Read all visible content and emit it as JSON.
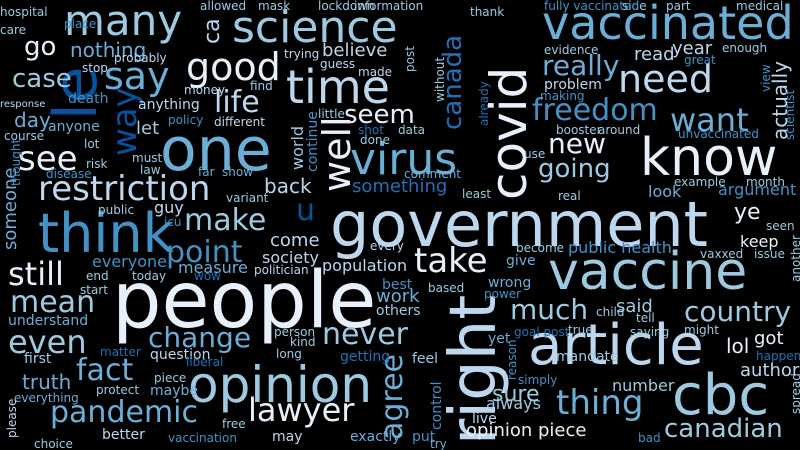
{
  "palette": [
    "#e8f1fb",
    "#bdd7ee",
    "#9ecae1",
    "#6baed6",
    "#4292c6",
    "#2171b5",
    "#08519c",
    "#1f4e8c"
  ],
  "words": [
    {
      "text": "people"
    },
    {
      "text": "government"
    },
    {
      "text": "vaccine"
    },
    {
      "text": "article"
    },
    {
      "text": "opinion"
    },
    {
      "text": "cbc"
    },
    {
      "text": "right"
    },
    {
      "text": "covid"
    },
    {
      "text": "one"
    },
    {
      "text": "think"
    },
    {
      "text": "know"
    },
    {
      "text": "vaccinated"
    },
    {
      "text": "science"
    },
    {
      "text": "time"
    },
    {
      "text": "virus"
    },
    {
      "text": "restriction"
    },
    {
      "text": "many"
    },
    {
      "text": "say"
    },
    {
      "text": "need"
    },
    {
      "text": "good"
    },
    {
      "text": "life"
    },
    {
      "text": "take"
    },
    {
      "text": "well"
    },
    {
      "text": "lawyer"
    },
    {
      "text": "pandemic"
    },
    {
      "text": "thing"
    },
    {
      "text": "canadian"
    },
    {
      "text": "country"
    },
    {
      "text": "canada"
    },
    {
      "text": "make"
    },
    {
      "text": "point"
    },
    {
      "text": "even"
    },
    {
      "text": "mean"
    },
    {
      "text": "still"
    },
    {
      "text": "fact"
    },
    {
      "text": "never"
    },
    {
      "text": "change"
    },
    {
      "text": "much"
    },
    {
      "text": "freedom"
    },
    {
      "text": "going"
    },
    {
      "text": "new"
    },
    {
      "text": "want"
    },
    {
      "text": "really"
    },
    {
      "text": "see"
    },
    {
      "text": "agree"
    },
    {
      "text": "le"
    },
    {
      "text": "u"
    },
    {
      "text": "ye"
    },
    {
      "text": "way"
    },
    {
      "text": "go"
    },
    {
      "text": "nothing"
    },
    {
      "text": "case"
    },
    {
      "text": "seem"
    },
    {
      "text": "back"
    },
    {
      "text": "come"
    },
    {
      "text": "believe"
    },
    {
      "text": "population"
    },
    {
      "text": "sure"
    },
    {
      "text": "said"
    },
    {
      "text": "lol"
    },
    {
      "text": "got"
    },
    {
      "text": "author"
    },
    {
      "text": "actually"
    },
    {
      "text": "keep"
    },
    {
      "text": "year"
    },
    {
      "text": "read"
    },
    {
      "text": "opinion piece"
    },
    {
      "text": "truth"
    },
    {
      "text": "measure"
    },
    {
      "text": "work"
    },
    {
      "text": "public health"
    },
    {
      "text": "something"
    },
    {
      "text": "day"
    },
    {
      "text": "let"
    },
    {
      "text": "everyone"
    },
    {
      "text": "better"
    },
    {
      "text": "vaccination"
    },
    {
      "text": "always"
    },
    {
      "text": "wrong"
    },
    {
      "text": "question"
    },
    {
      "text": "anything"
    },
    {
      "text": "anyone"
    },
    {
      "text": "look"
    },
    {
      "text": "argument"
    },
    {
      "text": "someone"
    },
    {
      "text": "understand"
    },
    {
      "text": "first"
    },
    {
      "text": "maybe"
    },
    {
      "text": "hospital"
    },
    {
      "text": "information"
    },
    {
      "text": "lockdown"
    },
    {
      "text": "mask"
    },
    {
      "text": "allowed"
    },
    {
      "text": "medical"
    },
    {
      "text": "part"
    },
    {
      "text": "side"
    },
    {
      "text": "thank"
    },
    {
      "text": "fully vaccinated"
    },
    {
      "text": "evidence"
    },
    {
      "text": "enough"
    },
    {
      "text": "great"
    },
    {
      "text": "problem"
    },
    {
      "text": "booster"
    },
    {
      "text": "around"
    },
    {
      "text": "unvaccinated"
    },
    {
      "text": "scientist"
    },
    {
      "text": "view"
    },
    {
      "text": "trying"
    },
    {
      "text": "guess"
    },
    {
      "text": "made"
    },
    {
      "text": "post"
    },
    {
      "text": "without"
    },
    {
      "text": "comment"
    },
    {
      "text": "world"
    },
    {
      "text": "continue"
    },
    {
      "text": "little"
    },
    {
      "text": "shot"
    },
    {
      "text": "data"
    },
    {
      "text": "done"
    },
    {
      "text": "already"
    },
    {
      "text": "use"
    },
    {
      "text": "lot"
    },
    {
      "text": "must"
    },
    {
      "text": "risk"
    },
    {
      "text": "disease"
    },
    {
      "text": "law"
    },
    {
      "text": "far"
    },
    {
      "text": "show"
    },
    {
      "text": "guy"
    },
    {
      "text": "public"
    },
    {
      "text": "icu"
    },
    {
      "text": "variant"
    },
    {
      "text": "society"
    },
    {
      "text": "every"
    },
    {
      "text": "best"
    },
    {
      "text": "based"
    },
    {
      "text": "give"
    },
    {
      "text": "power"
    },
    {
      "text": "become"
    },
    {
      "text": "vaxxed"
    },
    {
      "text": "issue"
    },
    {
      "text": "seen"
    },
    {
      "text": "another"
    },
    {
      "text": "month"
    },
    {
      "text": "example"
    },
    {
      "text": "real"
    },
    {
      "text": "least"
    },
    {
      "text": "others"
    },
    {
      "text": "politician"
    },
    {
      "text": "wow"
    },
    {
      "text": "today"
    },
    {
      "text": "end"
    },
    {
      "text": "start"
    },
    {
      "text": "matter"
    },
    {
      "text": "protect"
    },
    {
      "text": "everything"
    },
    {
      "text": "piece"
    },
    {
      "text": "liberal"
    },
    {
      "text": "kind"
    },
    {
      "text": "person"
    },
    {
      "text": "long"
    },
    {
      "text": "getting"
    },
    {
      "text": "feel"
    },
    {
      "text": "control"
    },
    {
      "text": "put"
    },
    {
      "text": "try"
    },
    {
      "text": "exactly"
    },
    {
      "text": "may"
    },
    {
      "text": "free"
    },
    {
      "text": "choice"
    },
    {
      "text": "please"
    },
    {
      "text": "live"
    },
    {
      "text": "yet"
    },
    {
      "text": "reason"
    },
    {
      "text": "simply"
    },
    {
      "text": "mandate"
    },
    {
      "text": "number"
    },
    {
      "text": "bad"
    },
    {
      "text": "goal post"
    },
    {
      "text": "true"
    },
    {
      "text": "child"
    },
    {
      "text": "tell"
    },
    {
      "text": "saying"
    },
    {
      "text": "might"
    },
    {
      "text": "happen"
    },
    {
      "text": "spread"
    },
    {
      "text": "care"
    },
    {
      "text": "place"
    },
    {
      "text": "death"
    },
    {
      "text": "response"
    },
    {
      "text": "course"
    },
    {
      "text": "thought"
    },
    {
      "text": "probably"
    },
    {
      "text": "stop"
    },
    {
      "text": "money"
    },
    {
      "text": "find"
    },
    {
      "text": "policy"
    },
    {
      "text": "different"
    },
    {
      "text": "making"
    },
    {
      "text": "ca"
    }
  ]
}
